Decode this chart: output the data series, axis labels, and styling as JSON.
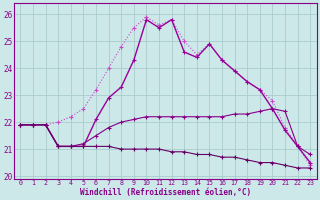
{
  "xlabel": "Windchill (Refroidissement éolien,°C)",
  "x": [
    0,
    1,
    2,
    3,
    4,
    5,
    6,
    7,
    8,
    9,
    10,
    11,
    12,
    13,
    14,
    15,
    16,
    17,
    18,
    19,
    20,
    21,
    22,
    23
  ],
  "series": [
    {
      "y": [
        21.9,
        21.9,
        21.9,
        22.0,
        22.2,
        22.5,
        23.2,
        24.0,
        24.8,
        25.5,
        25.9,
        25.6,
        25.8,
        25.0,
        24.5,
        24.9,
        24.3,
        23.9,
        23.5,
        23.2,
        22.8,
        21.8,
        21.1,
        20.4
      ],
      "color": "#cc44cc",
      "marker": "+",
      "markersize": 3,
      "lw": 0.8,
      "linestyle": ":"
    },
    {
      "y": [
        21.9,
        21.9,
        21.9,
        21.1,
        21.1,
        21.1,
        22.1,
        22.9,
        23.3,
        24.3,
        25.8,
        25.5,
        25.8,
        24.6,
        24.4,
        24.9,
        24.3,
        23.9,
        23.5,
        23.2,
        22.5,
        21.7,
        21.1,
        20.5
      ],
      "color": "#990099",
      "marker": "+",
      "markersize": 3,
      "lw": 1.0,
      "linestyle": "-"
    },
    {
      "y": [
        21.9,
        21.9,
        21.9,
        21.1,
        21.1,
        21.2,
        21.5,
        21.8,
        22.0,
        22.1,
        22.2,
        22.2,
        22.2,
        22.2,
        22.2,
        22.2,
        22.2,
        22.3,
        22.3,
        22.4,
        22.5,
        22.4,
        21.1,
        20.8
      ],
      "color": "#880088",
      "marker": "+",
      "markersize": 3,
      "lw": 0.8,
      "linestyle": "-"
    },
    {
      "y": [
        21.9,
        21.9,
        21.9,
        21.1,
        21.1,
        21.1,
        21.1,
        21.1,
        21.0,
        21.0,
        21.0,
        21.0,
        20.9,
        20.9,
        20.8,
        20.8,
        20.7,
        20.7,
        20.6,
        20.5,
        20.5,
        20.4,
        20.3,
        20.3
      ],
      "color": "#660066",
      "marker": "+",
      "markersize": 3,
      "lw": 0.8,
      "linestyle": "-"
    }
  ],
  "ylim": [
    19.9,
    26.4
  ],
  "xlim": [
    -0.5,
    23.5
  ],
  "yticks": [
    20,
    21,
    22,
    23,
    24,
    25,
    26
  ],
  "xticks": [
    0,
    1,
    2,
    3,
    4,
    5,
    6,
    7,
    8,
    9,
    10,
    11,
    12,
    13,
    14,
    15,
    16,
    17,
    18,
    19,
    20,
    21,
    22,
    23
  ],
  "bg_color": "#cce8e8",
  "grid_color": "#aacccc",
  "border_color": "#880088",
  "tick_color": "#880088",
  "label_color": "#880088"
}
